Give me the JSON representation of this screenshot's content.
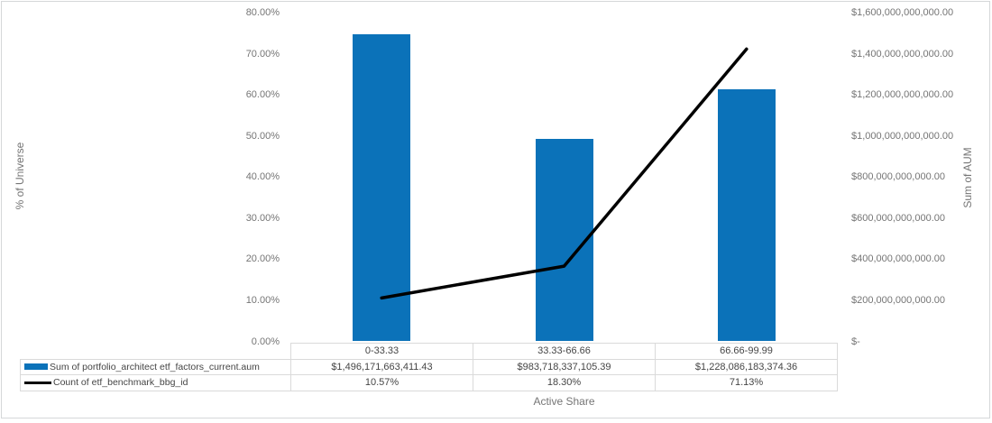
{
  "chart_data": {
    "type": "combo bar+line",
    "categories": [
      "0-33.33",
      "33.33-66.66",
      "66.66-99.99"
    ],
    "xlabel": "Active Share",
    "grid": false,
    "legend_position": "table-left",
    "left_axis": {
      "title": "% of Universe",
      "min": 0,
      "max": 80,
      "ticks": [
        "80.00%",
        "70.00%",
        "60.00%",
        "50.00%",
        "40.00%",
        "30.00%",
        "20.00%",
        "10.00%",
        "0.00%"
      ]
    },
    "right_axis": {
      "title": "Sum of AUM",
      "min": 0,
      "max": 1600000000000,
      "ticks": [
        "$1,600,000,000,000.00",
        "$1,400,000,000,000.00",
        "$1,200,000,000,000.00",
        "$1,000,000,000,000.00",
        "$800,000,000,000.00",
        "$600,000,000,000.00",
        "$400,000,000,000.00",
        "$200,000,000,000.00",
        "$-"
      ]
    },
    "series": [
      {
        "name": "Sum of portfolio_architect etf_factors_current.aum",
        "type": "bar",
        "axis": "right",
        "color": "#0b72b9",
        "values": [
          1496171663411.43,
          983718337105.39,
          1228086183374.36
        ],
        "display_values": [
          "$1,496,171,663,411.43",
          "$983,718,337,105.39",
          "$1,228,086,183,374.36"
        ]
      },
      {
        "name": "Count of etf_benchmark_bbg_id",
        "type": "line",
        "axis": "left",
        "color": "#000000",
        "values": [
          10.57,
          18.3,
          71.13
        ],
        "display_values": [
          "10.57%",
          "18.30%",
          "71.13%"
        ]
      }
    ]
  }
}
